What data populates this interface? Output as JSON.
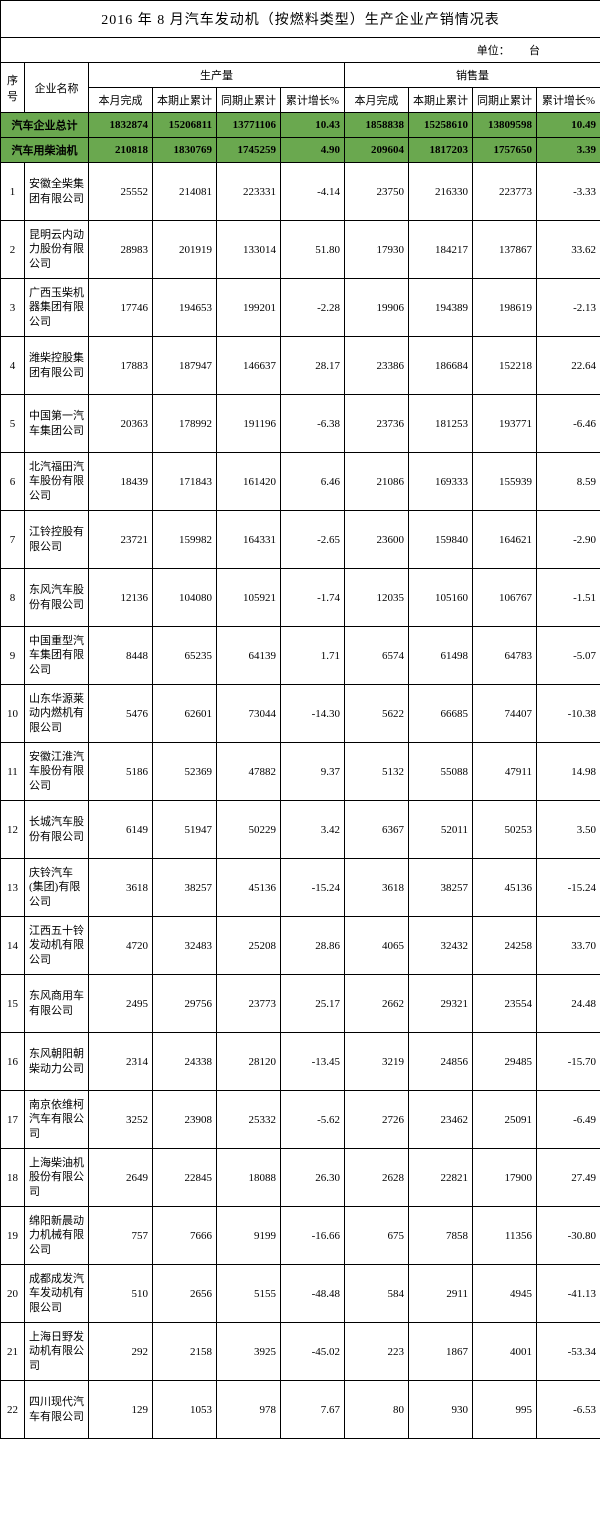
{
  "title": "2016 年 8 月汽车发动机（按燃料类型）生产企业产销情况表",
  "unit_label": "单位：",
  "unit_value": "台",
  "headers": {
    "seq": "序号",
    "company": "企业名称",
    "production": "生产量",
    "sales": "销售量",
    "month_done": "本月完成",
    "period_cum": "本期止累计",
    "same_period_cum": "同期止累计",
    "cum_growth": "累计增长%"
  },
  "total_row": {
    "label": "汽车企业总计",
    "p_month": "1832874",
    "p_period": "15206811",
    "p_same": "13771106",
    "p_growth": "10.43",
    "s_month": "1858838",
    "s_period": "15258610",
    "s_same": "13809598",
    "s_growth": "10.49"
  },
  "diesel_row": {
    "label": "汽车用柴油机",
    "p_month": "210818",
    "p_period": "1830769",
    "p_same": "1745259",
    "p_growth": "4.90",
    "s_month": "209604",
    "s_period": "1817203",
    "s_same": "1757650",
    "s_growth": "3.39"
  },
  "rows": [
    {
      "seq": "1",
      "name": "安徽全柴集团有限公司",
      "p_month": "25552",
      "p_period": "214081",
      "p_same": "223331",
      "p_growth": "-4.14",
      "s_month": "23750",
      "s_period": "216330",
      "s_same": "223773",
      "s_growth": "-3.33"
    },
    {
      "seq": "2",
      "name": "昆明云内动力股份有限公司",
      "p_month": "28983",
      "p_period": "201919",
      "p_same": "133014",
      "p_growth": "51.80",
      "s_month": "17930",
      "s_period": "184217",
      "s_same": "137867",
      "s_growth": "33.62"
    },
    {
      "seq": "3",
      "name": "广西玉柴机器集团有限公司",
      "p_month": "17746",
      "p_period": "194653",
      "p_same": "199201",
      "p_growth": "-2.28",
      "s_month": "19906",
      "s_period": "194389",
      "s_same": "198619",
      "s_growth": "-2.13"
    },
    {
      "seq": "4",
      "name": "潍柴控股集团有限公司",
      "p_month": "17883",
      "p_period": "187947",
      "p_same": "146637",
      "p_growth": "28.17",
      "s_month": "23386",
      "s_period": "186684",
      "s_same": "152218",
      "s_growth": "22.64"
    },
    {
      "seq": "5",
      "name": "中国第一汽车集团公司",
      "p_month": "20363",
      "p_period": "178992",
      "p_same": "191196",
      "p_growth": "-6.38",
      "s_month": "23736",
      "s_period": "181253",
      "s_same": "193771",
      "s_growth": "-6.46"
    },
    {
      "seq": "6",
      "name": "北汽福田汽车股份有限公司",
      "p_month": "18439",
      "p_period": "171843",
      "p_same": "161420",
      "p_growth": "6.46",
      "s_month": "21086",
      "s_period": "169333",
      "s_same": "155939",
      "s_growth": "8.59"
    },
    {
      "seq": "7",
      "name": "江铃控股有限公司",
      "p_month": "23721",
      "p_period": "159982",
      "p_same": "164331",
      "p_growth": "-2.65",
      "s_month": "23600",
      "s_period": "159840",
      "s_same": "164621",
      "s_growth": "-2.90"
    },
    {
      "seq": "8",
      "name": "东风汽车股份有限公司",
      "p_month": "12136",
      "p_period": "104080",
      "p_same": "105921",
      "p_growth": "-1.74",
      "s_month": "12035",
      "s_period": "105160",
      "s_same": "106767",
      "s_growth": "-1.51"
    },
    {
      "seq": "9",
      "name": "中国重型汽车集团有限公司",
      "p_month": "8448",
      "p_period": "65235",
      "p_same": "64139",
      "p_growth": "1.71",
      "s_month": "6574",
      "s_period": "61498",
      "s_same": "64783",
      "s_growth": "-5.07"
    },
    {
      "seq": "10",
      "name": "山东华源莱动内燃机有限公司",
      "p_month": "5476",
      "p_period": "62601",
      "p_same": "73044",
      "p_growth": "-14.30",
      "s_month": "5622",
      "s_period": "66685",
      "s_same": "74407",
      "s_growth": "-10.38"
    },
    {
      "seq": "11",
      "name": "安徽江淮汽车股份有限公司",
      "p_month": "5186",
      "p_period": "52369",
      "p_same": "47882",
      "p_growth": "9.37",
      "s_month": "5132",
      "s_period": "55088",
      "s_same": "47911",
      "s_growth": "14.98"
    },
    {
      "seq": "12",
      "name": "长城汽车股份有限公司",
      "p_month": "6149",
      "p_period": "51947",
      "p_same": "50229",
      "p_growth": "3.42",
      "s_month": "6367",
      "s_period": "52011",
      "s_same": "50253",
      "s_growth": "3.50"
    },
    {
      "seq": "13",
      "name": "庆铃汽车(集团)有限公司",
      "p_month": "3618",
      "p_period": "38257",
      "p_same": "45136",
      "p_growth": "-15.24",
      "s_month": "3618",
      "s_period": "38257",
      "s_same": "45136",
      "s_growth": "-15.24"
    },
    {
      "seq": "14",
      "name": "江西五十铃发动机有限公司",
      "p_month": "4720",
      "p_period": "32483",
      "p_same": "25208",
      "p_growth": "28.86",
      "s_month": "4065",
      "s_period": "32432",
      "s_same": "24258",
      "s_growth": "33.70"
    },
    {
      "seq": "15",
      "name": "东风商用车有限公司",
      "p_month": "2495",
      "p_period": "29756",
      "p_same": "23773",
      "p_growth": "25.17",
      "s_month": "2662",
      "s_period": "29321",
      "s_same": "23554",
      "s_growth": "24.48"
    },
    {
      "seq": "16",
      "name": "东风朝阳朝柴动力公司",
      "p_month": "2314",
      "p_period": "24338",
      "p_same": "28120",
      "p_growth": "-13.45",
      "s_month": "3219",
      "s_period": "24856",
      "s_same": "29485",
      "s_growth": "-15.70"
    },
    {
      "seq": "17",
      "name": "南京依维柯汽车有限公司",
      "p_month": "3252",
      "p_period": "23908",
      "p_same": "25332",
      "p_growth": "-5.62",
      "s_month": "2726",
      "s_period": "23462",
      "s_same": "25091",
      "s_growth": "-6.49"
    },
    {
      "seq": "18",
      "name": "上海柴油机股份有限公司",
      "p_month": "2649",
      "p_period": "22845",
      "p_same": "18088",
      "p_growth": "26.30",
      "s_month": "2628",
      "s_period": "22821",
      "s_same": "17900",
      "s_growth": "27.49"
    },
    {
      "seq": "19",
      "name": "绵阳新晨动力机械有限公司",
      "p_month": "757",
      "p_period": "7666",
      "p_same": "9199",
      "p_growth": "-16.66",
      "s_month": "675",
      "s_period": "7858",
      "s_same": "11356",
      "s_growth": "-30.80"
    },
    {
      "seq": "20",
      "name": "成都成发汽车发动机有限公司",
      "p_month": "510",
      "p_period": "2656",
      "p_same": "5155",
      "p_growth": "-48.48",
      "s_month": "584",
      "s_period": "2911",
      "s_same": "4945",
      "s_growth": "-41.13"
    },
    {
      "seq": "21",
      "name": "上海日野发动机有限公司",
      "p_month": "292",
      "p_period": "2158",
      "p_same": "3925",
      "p_growth": "-45.02",
      "s_month": "223",
      "s_period": "1867",
      "s_same": "4001",
      "s_growth": "-53.34"
    },
    {
      "seq": "22",
      "name": "四川现代汽车有限公司",
      "p_month": "129",
      "p_period": "1053",
      "p_same": "978",
      "p_growth": "7.67",
      "s_month": "80",
      "s_period": "930",
      "s_same": "995",
      "s_growth": "-6.53"
    }
  ],
  "style": {
    "green_bg": "#6aa84f",
    "border_color": "#000000",
    "bg_color": "#ffffff",
    "font": "SimSun",
    "title_fontsize": 14,
    "cell_fontsize": 11
  }
}
